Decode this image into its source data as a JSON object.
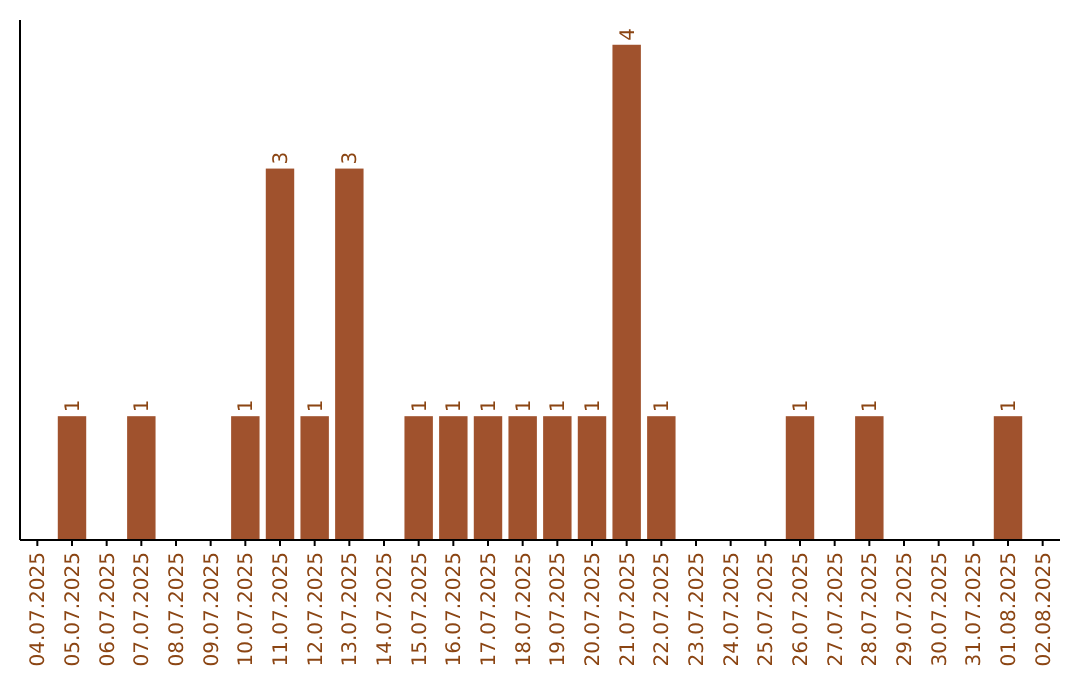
{
  "chart_data": {
    "type": "bar",
    "categories": [
      "04.07.2025",
      "05.07.2025",
      "06.07.2025",
      "07.07.2025",
      "08.07.2025",
      "09.07.2025",
      "10.07.2025",
      "11.07.2025",
      "12.07.2025",
      "13.07.2025",
      "14.07.2025",
      "15.07.2025",
      "16.07.2025",
      "17.07.2025",
      "18.07.2025",
      "19.07.2025",
      "20.07.2025",
      "21.07.2025",
      "22.07.2025",
      "23.07.2025",
      "24.07.2025",
      "25.07.2025",
      "26.07.2025",
      "27.07.2025",
      "28.07.2025",
      "29.07.2025",
      "30.07.2025",
      "31.07.2025",
      "01.08.2025",
      "02.08.2025"
    ],
    "values": [
      null,
      1,
      null,
      1,
      null,
      null,
      1,
      3,
      1,
      3,
      null,
      1,
      1,
      1,
      1,
      1,
      1,
      4,
      1,
      null,
      null,
      null,
      1,
      null,
      1,
      null,
      null,
      null,
      1,
      null
    ],
    "color": "#a0522d",
    "ylim": [
      0,
      4.2
    ],
    "data_labels": true,
    "grid": false
  }
}
